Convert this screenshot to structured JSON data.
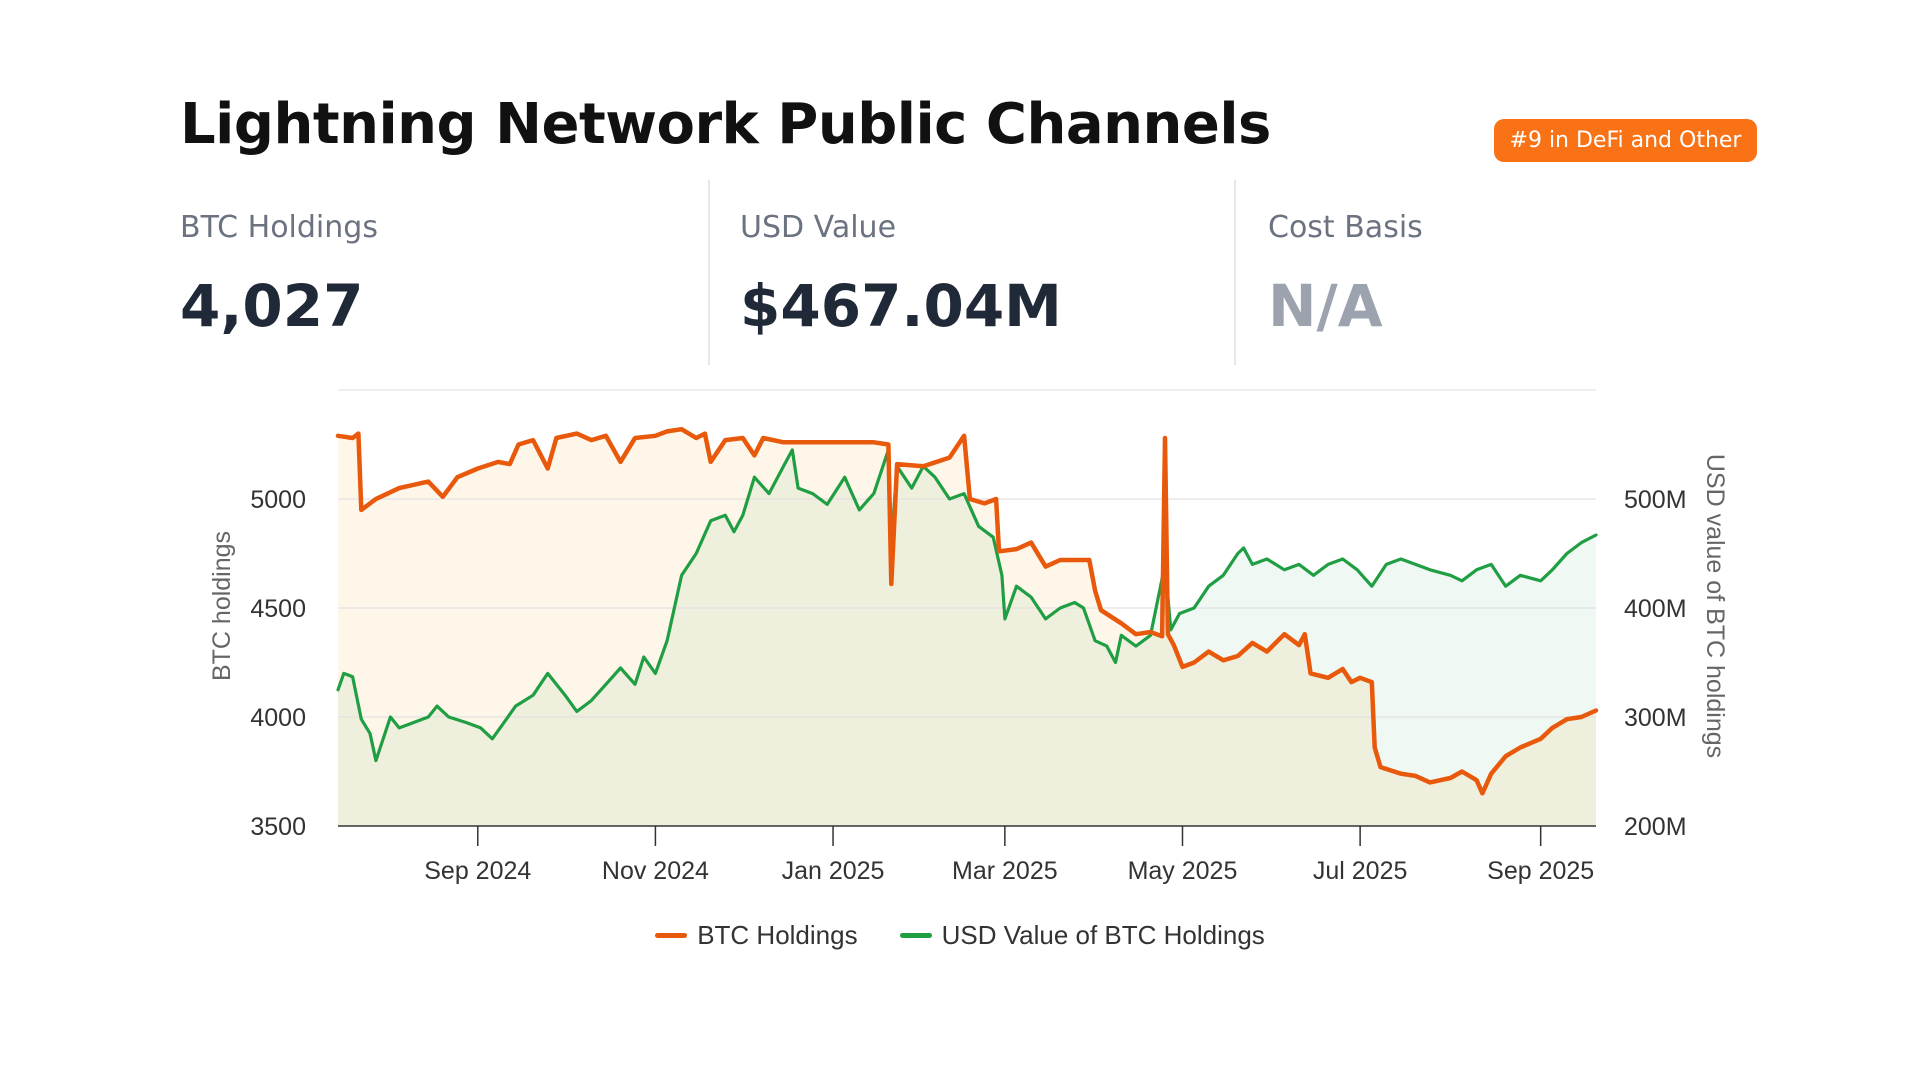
{
  "header": {
    "title": "Lightning Network Public Channels",
    "rank_badge": "#9 in DeFi and Other"
  },
  "stats": [
    {
      "label": "BTC Holdings",
      "value": "4,027"
    },
    {
      "label": "USD Value",
      "value": "$467.04M"
    },
    {
      "label": "Cost Basis",
      "value": "N/A"
    }
  ],
  "colors": {
    "btc": "#e8590c",
    "usd": "#1f9e43",
    "btc_fill": "#fdf3e6",
    "usd_fill": "#eef7f1",
    "badge": "#f97316"
  },
  "chart_data": {
    "type": "line",
    "title": "",
    "xlabel": "",
    "ylabel": "BTC holdings",
    "y2label": "USD value of BTC holdings",
    "ylim": [
      3500,
      5500
    ],
    "y2lim": [
      200,
      600
    ],
    "yticks": [
      3500,
      4000,
      4500,
      5000
    ],
    "ytick_labels": [
      "3500",
      "4000",
      "4500",
      "5000"
    ],
    "y2ticks": [
      200,
      300,
      400,
      500
    ],
    "y2tick_labels": [
      "200M",
      "300M",
      "400M",
      "500M"
    ],
    "xlim": [
      "2024-07-15",
      "2025-09-20"
    ],
    "xticks": [
      "2024-09-01",
      "2024-11-01",
      "2025-01-01",
      "2025-03-01",
      "2025-05-01",
      "2025-07-01",
      "2025-09-01"
    ],
    "xtick_labels": [
      "Sep 2024",
      "Nov 2024",
      "Jan 2025",
      "Mar 2025",
      "May 2025",
      "Jul 2025",
      "Sep 2025"
    ],
    "grid": true,
    "legend": "bottom-center",
    "series": [
      {
        "name": "BTC Holdings",
        "axis": "left",
        "points": [
          [
            "2024-07-15",
            5290
          ],
          [
            "2024-07-20",
            5280
          ],
          [
            "2024-07-22",
            5300
          ],
          [
            "2024-07-23",
            4950
          ],
          [
            "2024-07-28",
            5000
          ],
          [
            "2024-08-05",
            5050
          ],
          [
            "2024-08-15",
            5080
          ],
          [
            "2024-08-20",
            5010
          ],
          [
            "2024-08-25",
            5100
          ],
          [
            "2024-09-01",
            5140
          ],
          [
            "2024-09-08",
            5170
          ],
          [
            "2024-09-12",
            5160
          ],
          [
            "2024-09-15",
            5250
          ],
          [
            "2024-09-20",
            5270
          ],
          [
            "2024-09-25",
            5140
          ],
          [
            "2024-09-28",
            5280
          ],
          [
            "2024-10-05",
            5300
          ],
          [
            "2024-10-10",
            5270
          ],
          [
            "2024-10-15",
            5290
          ],
          [
            "2024-10-20",
            5170
          ],
          [
            "2024-10-25",
            5280
          ],
          [
            "2024-11-01",
            5290
          ],
          [
            "2024-11-05",
            5310
          ],
          [
            "2024-11-10",
            5320
          ],
          [
            "2024-11-15",
            5280
          ],
          [
            "2024-11-18",
            5300
          ],
          [
            "2024-11-20",
            5170
          ],
          [
            "2024-11-25",
            5270
          ],
          [
            "2024-12-01",
            5280
          ],
          [
            "2024-12-05",
            5200
          ],
          [
            "2024-12-08",
            5280
          ],
          [
            "2024-12-15",
            5260
          ],
          [
            "2024-12-20",
            5260
          ],
          [
            "2025-01-05",
            5260
          ],
          [
            "2025-01-15",
            5260
          ],
          [
            "2025-01-20",
            5250
          ],
          [
            "2025-01-21",
            4610
          ],
          [
            "2025-01-23",
            5160
          ],
          [
            "2025-02-01",
            5150
          ],
          [
            "2025-02-10",
            5190
          ],
          [
            "2025-02-15",
            5290
          ],
          [
            "2025-02-17",
            5000
          ],
          [
            "2025-02-22",
            4980
          ],
          [
            "2025-02-26",
            5000
          ],
          [
            "2025-02-27",
            4760
          ],
          [
            "2025-03-05",
            4770
          ],
          [
            "2025-03-10",
            4800
          ],
          [
            "2025-03-15",
            4690
          ],
          [
            "2025-03-20",
            4720
          ],
          [
            "2025-03-30",
            4720
          ],
          [
            "2025-04-01",
            4580
          ],
          [
            "2025-04-03",
            4490
          ],
          [
            "2025-04-10",
            4430
          ],
          [
            "2025-04-15",
            4380
          ],
          [
            "2025-04-20",
            4390
          ],
          [
            "2025-04-24",
            4370
          ],
          [
            "2025-04-25",
            5280
          ],
          [
            "2025-04-26",
            4380
          ],
          [
            "2025-04-28",
            4330
          ],
          [
            "2025-05-01",
            4230
          ],
          [
            "2025-05-05",
            4250
          ],
          [
            "2025-05-10",
            4300
          ],
          [
            "2025-05-15",
            4260
          ],
          [
            "2025-05-20",
            4280
          ],
          [
            "2025-05-25",
            4340
          ],
          [
            "2025-05-30",
            4300
          ],
          [
            "2025-06-05",
            4380
          ],
          [
            "2025-06-10",
            4330
          ],
          [
            "2025-06-12",
            4380
          ],
          [
            "2025-06-14",
            4200
          ],
          [
            "2025-06-20",
            4180
          ],
          [
            "2025-06-25",
            4220
          ],
          [
            "2025-06-28",
            4160
          ],
          [
            "2025-07-01",
            4180
          ],
          [
            "2025-07-05",
            4160
          ],
          [
            "2025-07-06",
            3860
          ],
          [
            "2025-07-08",
            3770
          ],
          [
            "2025-07-15",
            3740
          ],
          [
            "2025-07-20",
            3730
          ],
          [
            "2025-07-25",
            3700
          ],
          [
            "2025-08-01",
            3720
          ],
          [
            "2025-08-05",
            3750
          ],
          [
            "2025-08-10",
            3710
          ],
          [
            "2025-08-12",
            3650
          ],
          [
            "2025-08-15",
            3740
          ],
          [
            "2025-08-20",
            3820
          ],
          [
            "2025-08-25",
            3860
          ],
          [
            "2025-09-01",
            3900
          ],
          [
            "2025-09-05",
            3950
          ],
          [
            "2025-09-10",
            3990
          ],
          [
            "2025-09-15",
            4000
          ],
          [
            "2025-09-20",
            4030
          ]
        ]
      },
      {
        "name": "USD Value of BTC Holdings",
        "axis": "right",
        "points": [
          [
            "2024-07-15",
            325
          ],
          [
            "2024-07-17",
            340
          ],
          [
            "2024-07-20",
            337
          ],
          [
            "2024-07-23",
            298
          ],
          [
            "2024-07-26",
            285
          ],
          [
            "2024-07-28",
            260
          ],
          [
            "2024-08-02",
            300
          ],
          [
            "2024-08-05",
            290
          ],
          [
            "2024-08-10",
            295
          ],
          [
            "2024-08-15",
            300
          ],
          [
            "2024-08-18",
            310
          ],
          [
            "2024-08-22",
            300
          ],
          [
            "2024-08-28",
            295
          ],
          [
            "2024-09-02",
            290
          ],
          [
            "2024-09-06",
            280
          ],
          [
            "2024-09-10",
            295
          ],
          [
            "2024-09-14",
            310
          ],
          [
            "2024-09-20",
            320
          ],
          [
            "2024-09-25",
            340
          ],
          [
            "2024-10-01",
            320
          ],
          [
            "2024-10-05",
            305
          ],
          [
            "2024-10-10",
            315
          ],
          [
            "2024-10-15",
            330
          ],
          [
            "2024-10-20",
            345
          ],
          [
            "2024-10-25",
            330
          ],
          [
            "2024-10-28",
            355
          ],
          [
            "2024-11-01",
            340
          ],
          [
            "2024-11-05",
            370
          ],
          [
            "2024-11-10",
            430
          ],
          [
            "2024-11-15",
            450
          ],
          [
            "2024-11-20",
            480
          ],
          [
            "2024-11-25",
            485
          ],
          [
            "2024-11-28",
            470
          ],
          [
            "2024-12-01",
            485
          ],
          [
            "2024-12-05",
            520
          ],
          [
            "2024-12-10",
            505
          ],
          [
            "2024-12-15",
            530
          ],
          [
            "2024-12-18",
            545
          ],
          [
            "2024-12-20",
            510
          ],
          [
            "2024-12-25",
            505
          ],
          [
            "2024-12-30",
            495
          ],
          [
            "2025-01-05",
            520
          ],
          [
            "2025-01-10",
            490
          ],
          [
            "2025-01-15",
            505
          ],
          [
            "2025-01-20",
            545
          ],
          [
            "2025-01-21",
            460
          ],
          [
            "2025-01-23",
            530
          ],
          [
            "2025-01-28",
            510
          ],
          [
            "2025-02-01",
            530
          ],
          [
            "2025-02-05",
            520
          ],
          [
            "2025-02-10",
            500
          ],
          [
            "2025-02-15",
            505
          ],
          [
            "2025-02-20",
            475
          ],
          [
            "2025-02-25",
            465
          ],
          [
            "2025-02-28",
            430
          ],
          [
            "2025-03-01",
            390
          ],
          [
            "2025-03-05",
            420
          ],
          [
            "2025-03-10",
            410
          ],
          [
            "2025-03-15",
            390
          ],
          [
            "2025-03-20",
            400
          ],
          [
            "2025-03-25",
            405
          ],
          [
            "2025-03-28",
            400
          ],
          [
            "2025-04-01",
            370
          ],
          [
            "2025-04-05",
            365
          ],
          [
            "2025-04-08",
            350
          ],
          [
            "2025-04-10",
            375
          ],
          [
            "2025-04-15",
            365
          ],
          [
            "2025-04-20",
            375
          ],
          [
            "2025-04-25",
            440
          ],
          [
            "2025-04-27",
            380
          ],
          [
            "2025-04-30",
            395
          ],
          [
            "2025-05-05",
            400
          ],
          [
            "2025-05-10",
            420
          ],
          [
            "2025-05-15",
            430
          ],
          [
            "2025-05-20",
            450
          ],
          [
            "2025-05-22",
            455
          ],
          [
            "2025-05-25",
            440
          ],
          [
            "2025-05-30",
            445
          ],
          [
            "2025-06-05",
            435
          ],
          [
            "2025-06-10",
            440
          ],
          [
            "2025-06-15",
            430
          ],
          [
            "2025-06-20",
            440
          ],
          [
            "2025-06-25",
            445
          ],
          [
            "2025-06-30",
            435
          ],
          [
            "2025-07-05",
            420
          ],
          [
            "2025-07-10",
            440
          ],
          [
            "2025-07-15",
            445
          ],
          [
            "2025-07-20",
            440
          ],
          [
            "2025-07-25",
            435
          ],
          [
            "2025-08-01",
            430
          ],
          [
            "2025-08-05",
            425
          ],
          [
            "2025-08-10",
            435
          ],
          [
            "2025-08-15",
            440
          ],
          [
            "2025-08-20",
            420
          ],
          [
            "2025-08-25",
            430
          ],
          [
            "2025-09-01",
            425
          ],
          [
            "2025-09-05",
            435
          ],
          [
            "2025-09-10",
            450
          ],
          [
            "2025-09-15",
            460
          ],
          [
            "2025-09-20",
            467
          ]
        ]
      }
    ]
  }
}
